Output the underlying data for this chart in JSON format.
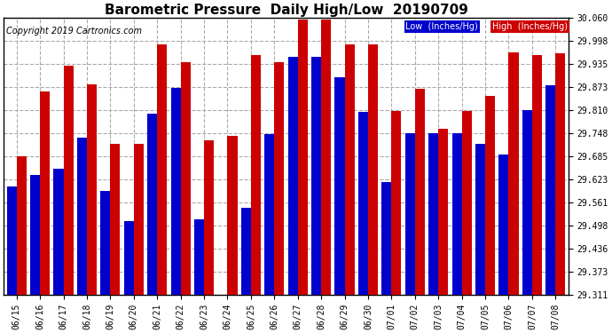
{
  "title": "Barometric Pressure  Daily High/Low  20190709",
  "copyright": "Copyright 2019 Cartronics.com",
  "legend_low": "Low  (Inches/Hg)",
  "legend_high": "High  (Inches/Hg)",
  "low_color": "#0000cc",
  "high_color": "#cc0000",
  "ylim_min": 29.311,
  "ylim_max": 30.06,
  "yticks": [
    29.311,
    29.373,
    29.436,
    29.498,
    29.561,
    29.623,
    29.685,
    29.748,
    29.81,
    29.873,
    29.935,
    29.998,
    30.06
  ],
  "categories": [
    "06/15",
    "06/16",
    "06/17",
    "06/18",
    "06/19",
    "06/20",
    "06/21",
    "06/22",
    "06/23",
    "06/24",
    "06/25",
    "06/26",
    "06/27",
    "06/28",
    "06/29",
    "06/30",
    "07/01",
    "07/02",
    "07/03",
    "07/04",
    "07/05",
    "07/06",
    "07/07",
    "07/08"
  ],
  "low_values": [
    29.605,
    29.635,
    29.652,
    29.736,
    29.591,
    29.51,
    29.8,
    29.87,
    29.515,
    29.311,
    29.545,
    29.745,
    29.955,
    29.955,
    29.9,
    29.805,
    29.615,
    29.748,
    29.748,
    29.748,
    29.72,
    29.691,
    29.81,
    29.878
  ],
  "high_values": [
    29.685,
    29.862,
    29.93,
    29.88,
    29.72,
    29.72,
    29.988,
    29.94,
    29.73,
    29.74,
    29.96,
    29.94,
    30.055,
    30.055,
    29.988,
    29.988,
    29.808,
    29.868,
    29.76,
    29.808,
    29.848,
    29.968,
    29.96,
    29.965
  ],
  "bar_width": 0.42,
  "background_color": "#ffffff",
  "grid_color": "#aaaaaa",
  "title_fontsize": 11,
  "copyright_fontsize": 7,
  "tick_fontsize": 7
}
